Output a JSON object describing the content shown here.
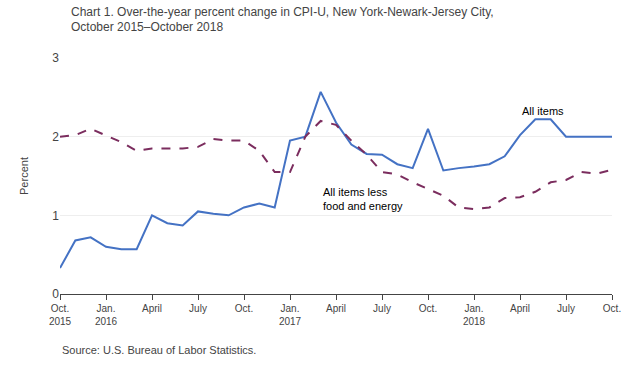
{
  "chart_data": {
    "type": "line",
    "title": "Chart 1. Over-the-year percent change in CPI-U, New York-Newark-Jersey City,\nOctober 2015–October 2018",
    "y_label": "Percent",
    "source": "Source: U.S. Bureau of Labor Statistics.",
    "categories": [
      "Oct.\n2015",
      null,
      null,
      "Jan.\n2016",
      null,
      null,
      "April",
      null,
      null,
      "July",
      null,
      null,
      "Oct.",
      null,
      null,
      "Jan.\n2017",
      null,
      null,
      "April",
      null,
      null,
      "July",
      null,
      null,
      "Oct.",
      null,
      null,
      "Jan.\n2018",
      null,
      null,
      "April",
      null,
      null,
      "July",
      null,
      null,
      "Oct."
    ],
    "series": [
      {
        "name": "All items",
        "color": "#4472C4",
        "line_style": "solid",
        "values": [
          0.33,
          0.68,
          0.72,
          0.6,
          0.57,
          0.57,
          1.0,
          0.9,
          0.87,
          1.05,
          1.02,
          1.0,
          1.1,
          1.15,
          1.1,
          1.95,
          2.0,
          2.57,
          2.18,
          1.9,
          1.78,
          1.77,
          1.65,
          1.6,
          2.1,
          1.57,
          1.6,
          1.62,
          1.65,
          1.75,
          2.02,
          2.22,
          2.22,
          2.0,
          2.0,
          2.0,
          2.0
        ]
      },
      {
        "name": "All items less\nfood and energy",
        "color": "#7B2D5E",
        "line_style": "dash",
        "values": [
          2.0,
          2.02,
          2.1,
          2.02,
          1.93,
          1.82,
          1.85,
          1.85,
          1.85,
          1.87,
          1.97,
          1.95,
          1.95,
          1.82,
          1.55,
          1.55,
          2.0,
          2.2,
          2.15,
          1.95,
          1.77,
          1.55,
          1.52,
          1.42,
          1.33,
          1.25,
          1.1,
          1.08,
          1.1,
          1.22,
          1.23,
          1.3,
          1.42,
          1.45,
          1.55,
          1.53,
          1.58
        ]
      }
    ],
    "annotations": [
      {
        "text": "All items",
        "x": 30,
        "y": 2.22,
        "anchor": "bottom"
      },
      {
        "text": "All items less\nfood and energy",
        "x": 17,
        "y": 1.4,
        "anchor": "top"
      }
    ],
    "ylim": [
      0,
      3
    ],
    "yticks": [
      0,
      1,
      2,
      3
    ],
    "grid": true
  }
}
